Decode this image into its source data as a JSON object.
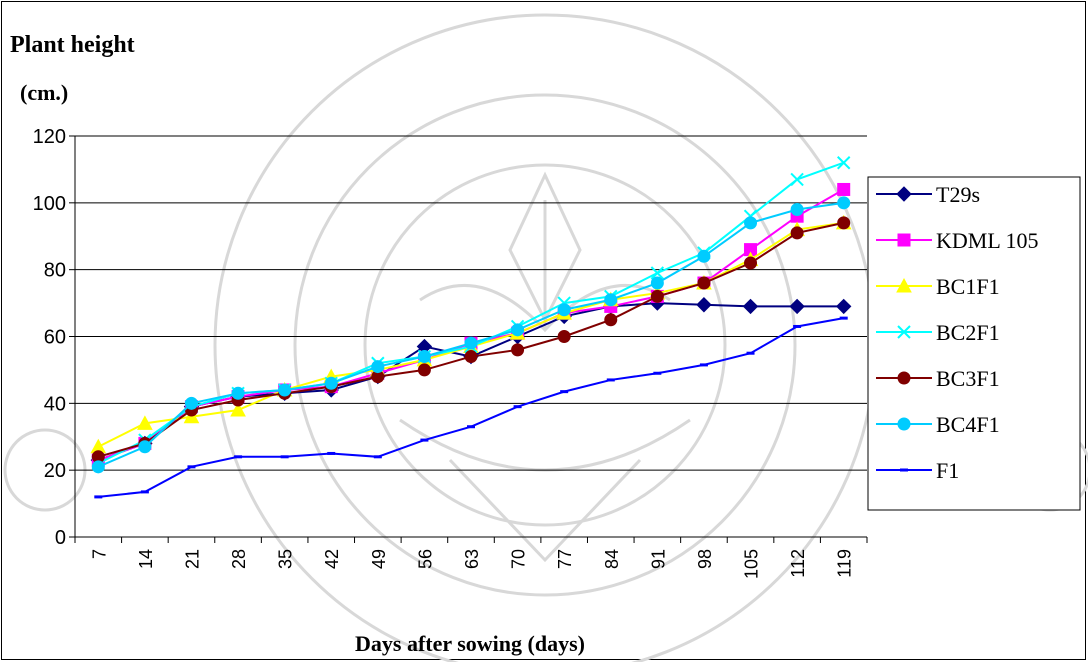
{
  "chart_data": {
    "type": "line",
    "title": "Plant height",
    "ylabel": "(cm.)",
    "xlabel": "Days after sowing (days)",
    "categories": [
      "7",
      "14",
      "21",
      "28",
      "35",
      "42",
      "49",
      "56",
      "63",
      "70",
      "77",
      "84",
      "91",
      "98",
      "105",
      "112",
      "119"
    ],
    "ylim": [
      0,
      120
    ],
    "yticks": [
      0,
      20,
      40,
      60,
      80,
      100,
      120
    ],
    "grid": true,
    "legend_position": "right",
    "series": [
      {
        "name": "T29s",
        "color": "#000080",
        "marker": "diamond",
        "values": [
          23,
          28,
          39,
          42,
          43,
          44,
          48,
          57,
          54,
          60,
          66,
          69,
          70,
          69.5,
          69,
          69,
          69
        ]
      },
      {
        "name": "KDML 105",
        "color": "#ff00ff",
        "marker": "square",
        "values": [
          23,
          28,
          39,
          42,
          44,
          45,
          49,
          53,
          58,
          61,
          67,
          69,
          72,
          76,
          86,
          96,
          104
        ]
      },
      {
        "name": "BC1F1",
        "color": "#ffff00",
        "marker": "triangle",
        "values": [
          27,
          34,
          36,
          38,
          44,
          48,
          50,
          53,
          57,
          61,
          67,
          71,
          73,
          76,
          83,
          92,
          94
        ]
      },
      {
        "name": "BC2F1",
        "color": "#00ffff",
        "marker": "x",
        "values": [
          22,
          29,
          39,
          43,
          44,
          46,
          52,
          54,
          57,
          63,
          70,
          72,
          79,
          85,
          96,
          107,
          112
        ]
      },
      {
        "name": "BC3F1",
        "color": "#800000",
        "marker": "circle",
        "values": [
          24,
          28,
          38,
          41,
          43,
          45,
          48,
          50,
          54,
          56,
          60,
          65,
          72,
          76,
          82,
          91,
          94
        ]
      },
      {
        "name": "BC4F1",
        "color": "#00ccff",
        "marker": "circle",
        "values": [
          21,
          27,
          40,
          43,
          44,
          46,
          51,
          54,
          58,
          62,
          68,
          71,
          76,
          84,
          94,
          98,
          100
        ]
      },
      {
        "name": "F1",
        "color": "#0000ff",
        "marker": "dash",
        "values": [
          12,
          13.5,
          21,
          24,
          24,
          25,
          24,
          29,
          33,
          39,
          43.5,
          47,
          49,
          51.5,
          55,
          63,
          65.5
        ]
      }
    ]
  }
}
